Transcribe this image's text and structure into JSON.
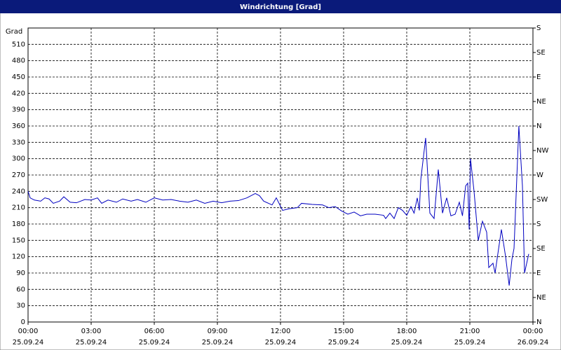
{
  "chart_data": {
    "type": "line",
    "title": "Windrichtung [Grad]",
    "y_label": "Grad",
    "x": [
      0,
      0.1,
      0.3,
      0.6,
      0.8,
      1.0,
      1.2,
      1.5,
      1.7,
      2.0,
      2.3,
      2.7,
      3.0,
      3.3,
      3.5,
      3.8,
      4.2,
      4.5,
      4.9,
      5.2,
      5.6,
      6.0,
      6.4,
      6.8,
      7.2,
      7.6,
      8.0,
      8.4,
      8.8,
      9.2,
      9.6,
      10.0,
      10.4,
      10.8,
      11.0,
      11.2,
      11.6,
      11.8,
      12.1,
      12.4,
      12.8,
      13.0,
      13.5,
      14.0,
      14.3,
      14.6,
      14.9,
      15.2,
      15.5,
      15.8,
      16.1,
      16.5,
      16.9,
      17.0,
      17.2,
      17.4,
      17.6,
      17.8,
      18.0,
      18.2,
      18.35,
      18.5,
      18.6,
      18.67,
      18.9,
      19.1,
      19.3,
      19.5,
      19.7,
      19.9,
      20.1,
      20.3,
      20.5,
      20.65,
      20.8,
      20.9,
      20.97,
      21.03,
      21.2,
      21.4,
      21.6,
      21.8,
      21.9,
      22.1,
      22.2,
      22.5,
      22.7,
      22.87,
      23.0,
      23.1,
      23.33,
      23.5,
      23.6,
      23.8
    ],
    "series": [
      {
        "name": "Windrichtung",
        "color": "#0000c0",
        "values": [
          240,
          228,
          224,
          222,
          228,
          226,
          218,
          222,
          230,
          220,
          219,
          225,
          224,
          228,
          218,
          224,
          220,
          226,
          222,
          225,
          220,
          228,
          224,
          225,
          222,
          220,
          224,
          218,
          222,
          219,
          222,
          223,
          228,
          236,
          232,
          222,
          215,
          228,
          205,
          208,
          210,
          218,
          216,
          215,
          210,
          212,
          204,
          198,
          202,
          195,
          198,
          198,
          196,
          190,
          200,
          190,
          210,
          205,
          196,
          212,
          200,
          228,
          205,
          262,
          338,
          200,
          190,
          280,
          200,
          228,
          195,
          198,
          220,
          195,
          250,
          255,
          170,
          300,
          240,
          150,
          185,
          165,
          100,
          108,
          90,
          170,
          120,
          67,
          115,
          135,
          360,
          250,
          90,
          125
        ]
      }
    ],
    "xlim": [
      0,
      24
    ],
    "xticks": [
      {
        "value": 0,
        "label": "00:00"
      },
      {
        "value": 3,
        "label": "03:00"
      },
      {
        "value": 6,
        "label": "06:00"
      },
      {
        "value": 9,
        "label": "09:00"
      },
      {
        "value": 12,
        "label": "12:00"
      },
      {
        "value": 15,
        "label": "15:00"
      },
      {
        "value": 18,
        "label": "18:00"
      },
      {
        "value": 21,
        "label": "21:00"
      },
      {
        "value": 24,
        "label": "00:00"
      }
    ],
    "xtick_dates": [
      "25.09.24",
      "25.09.24",
      "25.09.24",
      "25.09.24",
      "25.09.24",
      "25.09.24",
      "25.09.24",
      "25.09.24",
      "26.09.24"
    ],
    "ylim": [
      0,
      540
    ],
    "yticks": [
      0,
      30,
      60,
      90,
      120,
      150,
      180,
      210,
      240,
      270,
      300,
      330,
      360,
      390,
      420,
      450,
      480,
      510
    ],
    "y2lim": [
      0,
      540
    ],
    "y2ticks": [
      {
        "value": 0,
        "label": "N"
      },
      {
        "value": 45,
        "label": "NE"
      },
      {
        "value": 90,
        "label": "E"
      },
      {
        "value": 135,
        "label": "SE"
      },
      {
        "value": 180,
        "label": "S"
      },
      {
        "value": 225,
        "label": "SW"
      },
      {
        "value": 270,
        "label": "W"
      },
      {
        "value": 315,
        "label": "NW"
      },
      {
        "value": 360,
        "label": "N"
      },
      {
        "value": 405,
        "label": "NE"
      },
      {
        "value": 450,
        "label": "E"
      },
      {
        "value": 495,
        "label": "SE"
      },
      {
        "value": 540,
        "label": "S"
      }
    ],
    "grid": true
  }
}
